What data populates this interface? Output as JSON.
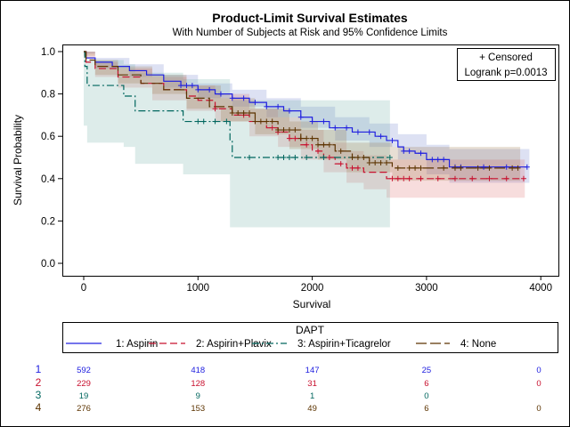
{
  "chart_data": {
    "type": "line",
    "title": "Product-Limit Survival Estimates",
    "subtitle": "With Number of Subjects at Risk and 95% Confidence Limits",
    "xlabel": "Survival",
    "ylabel": "Survival Probability",
    "xlim": [
      -200,
      4150
    ],
    "ylim": [
      -0.05,
      1.05
    ],
    "xticks": [
      0,
      1000,
      2000,
      3000,
      4000
    ],
    "yticks": [
      0.0,
      0.2,
      0.4,
      0.6,
      0.8,
      1.0
    ],
    "ytick_labels": [
      "0.0",
      "0.2",
      "0.4",
      "0.6",
      "0.8",
      "1.0"
    ],
    "grid": false,
    "inset": {
      "censored_label": "+ Censored",
      "logrank": "Logrank p=0.0013",
      "placement": "top-right"
    },
    "legend": {
      "title": "DAPT",
      "placement": "bottom"
    },
    "series": [
      {
        "name": "1: Aspirin",
        "color": "#2020e0",
        "dash": "solid",
        "band_color": "#6478c8",
        "steps": [
          [
            0,
            1.0
          ],
          [
            20,
            0.97
          ],
          [
            100,
            0.95
          ],
          [
            250,
            0.93
          ],
          [
            400,
            0.91
          ],
          [
            550,
            0.89
          ],
          [
            700,
            0.86
          ],
          [
            850,
            0.84
          ],
          [
            1000,
            0.82
          ],
          [
            1150,
            0.8
          ],
          [
            1300,
            0.78
          ],
          [
            1450,
            0.76
          ],
          [
            1600,
            0.74
          ],
          [
            1750,
            0.72
          ],
          [
            1900,
            0.69
          ],
          [
            2000,
            0.67
          ],
          [
            2150,
            0.64
          ],
          [
            2350,
            0.62
          ],
          [
            2550,
            0.6
          ],
          [
            2650,
            0.58
          ],
          [
            2750,
            0.55
          ],
          [
            2800,
            0.53
          ],
          [
            2900,
            0.52
          ],
          [
            3000,
            0.49
          ],
          [
            3200,
            0.455
          ]
        ],
        "end": 3880,
        "censored": [
          850,
          900,
          950,
          1000,
          1100,
          1200,
          1300,
          1400,
          1500,
          1600,
          1700,
          1800,
          1900,
          2000,
          2100,
          2200,
          2300,
          2400,
          2500,
          2600,
          2700,
          2800,
          2850,
          2950,
          3050,
          3100,
          3150,
          3250,
          3300,
          3500,
          3700,
          3880
        ],
        "ci": [
          [
            0,
            0.99,
            1.0
          ],
          [
            100,
            0.92,
            0.97
          ],
          [
            400,
            0.88,
            0.94
          ],
          [
            700,
            0.83,
            0.89
          ],
          [
            1000,
            0.78,
            0.85
          ],
          [
            1300,
            0.74,
            0.82
          ],
          [
            1600,
            0.69,
            0.78
          ],
          [
            1900,
            0.64,
            0.74
          ],
          [
            2200,
            0.58,
            0.69
          ],
          [
            2500,
            0.55,
            0.66
          ],
          [
            2750,
            0.49,
            0.61
          ],
          [
            3000,
            0.42,
            0.56
          ],
          [
            3200,
            0.38,
            0.54
          ]
        ],
        "ci_end": 3900
      },
      {
        "name": "2: Aspirin+Plavix",
        "color": "#c8102e",
        "dash": "dashed",
        "band_color": "#dc6464",
        "steps": [
          [
            0,
            1.0
          ],
          [
            20,
            0.95
          ],
          [
            100,
            0.92
          ],
          [
            300,
            0.88
          ],
          [
            500,
            0.85
          ],
          [
            700,
            0.82
          ],
          [
            900,
            0.79
          ],
          [
            1000,
            0.77
          ],
          [
            1150,
            0.73
          ],
          [
            1300,
            0.7
          ],
          [
            1450,
            0.67
          ],
          [
            1600,
            0.64
          ],
          [
            1700,
            0.62
          ],
          [
            1800,
            0.59
          ],
          [
            1900,
            0.56
          ],
          [
            2000,
            0.53
          ],
          [
            2100,
            0.5
          ],
          [
            2200,
            0.47
          ],
          [
            2300,
            0.45
          ],
          [
            2450,
            0.43
          ],
          [
            2650,
            0.4
          ]
        ],
        "end": 3850,
        "censored": [
          1150,
          1400,
          1500,
          1650,
          1700,
          1800,
          1850,
          1950,
          2050,
          2150,
          2250,
          2350,
          2400,
          2700,
          2750,
          2800,
          2850,
          2950,
          3100,
          3250,
          3400,
          3550,
          3700,
          3850
        ],
        "ci": [
          [
            0,
            0.97,
            1.0
          ],
          [
            100,
            0.88,
            0.95
          ],
          [
            300,
            0.83,
            0.92
          ],
          [
            600,
            0.77,
            0.88
          ],
          [
            900,
            0.72,
            0.84
          ],
          [
            1150,
            0.67,
            0.8
          ],
          [
            1450,
            0.6,
            0.73
          ],
          [
            1700,
            0.55,
            0.69
          ],
          [
            1900,
            0.49,
            0.63
          ],
          [
            2100,
            0.43,
            0.57
          ],
          [
            2300,
            0.38,
            0.53
          ],
          [
            2450,
            0.35,
            0.51
          ],
          [
            2650,
            0.31,
            0.49
          ]
        ],
        "ci_end": 3860
      },
      {
        "name": "3: Aspirin+Ticagrelor",
        "color": "#00665e",
        "dash": "dashdot",
        "band_color": "#78b4aa",
        "steps": [
          [
            0,
            1.0
          ],
          [
            10,
            0.93
          ],
          [
            30,
            0.84
          ],
          [
            350,
            0.79
          ],
          [
            450,
            0.72
          ],
          [
            870,
            0.67
          ],
          [
            1280,
            0.58
          ],
          [
            1300,
            0.5
          ]
        ],
        "end": 2680,
        "censored": [
          1000,
          1050,
          1150,
          1250,
          1450,
          1700,
          1750,
          1800,
          1850,
          1950,
          2100,
          2680
        ],
        "ci": [
          [
            0,
            0.65,
            1.0
          ],
          [
            30,
            0.57,
            0.96
          ],
          [
            350,
            0.55,
            0.94
          ],
          [
            450,
            0.47,
            0.9
          ],
          [
            870,
            0.42,
            0.87
          ],
          [
            1280,
            0.17,
            0.77
          ]
        ],
        "ci_end": 2680
      },
      {
        "name": "4: None",
        "color": "#5c3300",
        "dash": "longdash",
        "band_color": "#966e3c",
        "steps": [
          [
            0,
            1.0
          ],
          [
            20,
            0.96
          ],
          [
            100,
            0.93
          ],
          [
            300,
            0.89
          ],
          [
            500,
            0.85
          ],
          [
            700,
            0.82
          ],
          [
            900,
            0.78
          ],
          [
            1100,
            0.74
          ],
          [
            1300,
            0.71
          ],
          [
            1500,
            0.67
          ],
          [
            1700,
            0.63
          ],
          [
            1900,
            0.59
          ],
          [
            2050,
            0.56
          ],
          [
            2200,
            0.53
          ],
          [
            2350,
            0.5
          ],
          [
            2500,
            0.475
          ],
          [
            2700,
            0.45
          ]
        ],
        "end": 3800,
        "censored": [
          1300,
          1350,
          1400,
          1450,
          1500,
          1550,
          1600,
          1650,
          1700,
          1750,
          1800,
          1850,
          1900,
          1950,
          2000,
          2050,
          2100,
          2150,
          2250,
          2350,
          2400,
          2450,
          2500,
          2550,
          2600,
          2650,
          2750,
          2850,
          2900,
          2950,
          3150,
          3250,
          3300,
          3450,
          3550,
          3750,
          3800
        ],
        "ci": [
          [
            0,
            0.98,
            1.0
          ],
          [
            100,
            0.89,
            0.96
          ],
          [
            300,
            0.85,
            0.93
          ],
          [
            600,
            0.8,
            0.89
          ],
          [
            900,
            0.73,
            0.84
          ],
          [
            1200,
            0.67,
            0.78
          ],
          [
            1500,
            0.61,
            0.73
          ],
          [
            1800,
            0.54,
            0.67
          ],
          [
            2050,
            0.49,
            0.63
          ],
          [
            2300,
            0.43,
            0.57
          ],
          [
            2700,
            0.39,
            0.55
          ]
        ],
        "ci_end": 3820
      }
    ],
    "at_risk": {
      "times": [
        0,
        1000,
        2000,
        3000,
        4000
      ],
      "rows": [
        {
          "label": "1",
          "color": "#2020e0",
          "values": [
            "592",
            "418",
            "147",
            "25",
            "0"
          ]
        },
        {
          "label": "2",
          "color": "#c8102e",
          "values": [
            "229",
            "128",
            "31",
            "6",
            "0"
          ]
        },
        {
          "label": "3",
          "color": "#00665e",
          "values": [
            "19",
            "9",
            "1",
            "0",
            ""
          ]
        },
        {
          "label": "4",
          "color": "#5c3300",
          "values": [
            "276",
            "153",
            "49",
            "6",
            "0"
          ]
        }
      ]
    }
  }
}
